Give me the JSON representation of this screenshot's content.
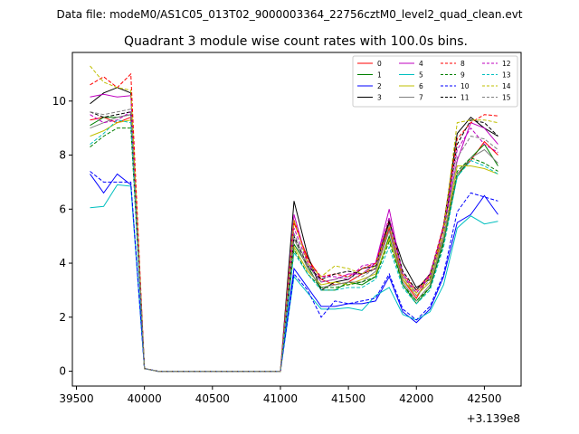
{
  "chart_data": {
    "type": "line",
    "suptitle": "Data file: modeM0/AS1C05_013T02_9000003364_22756cztM0_level2_quad_clean.evt",
    "title": "Quadrant 3 module wise count rates with 100.0s bins.",
    "xlabel": "",
    "ylabel": "",
    "x_offset_label": "+3.139e8",
    "xlim": [
      39470,
      42770
    ],
    "ylim": [
      -0.55,
      11.8
    ],
    "x_ticks": [
      39500,
      40000,
      40500,
      41000,
      41500,
      42000,
      42500
    ],
    "x_tick_labels": [
      "39500",
      "40000",
      "40500",
      "41000",
      "41500",
      "42000",
      "42500"
    ],
    "y_ticks": [
      0,
      2,
      4,
      6,
      8,
      10
    ],
    "y_tick_labels": [
      "0",
      "2",
      "4",
      "6",
      "8",
      "10"
    ],
    "legend_position": "top-right",
    "legend_columns": 4,
    "x": [
      39600,
      39700,
      39800,
      39900,
      40000,
      40100,
      40200,
      40300,
      40400,
      40500,
      40600,
      40700,
      40800,
      40900,
      41000,
      41100,
      41200,
      41300,
      41400,
      41500,
      41600,
      41700,
      41800,
      41900,
      42000,
      42100,
      42200,
      42300,
      42400,
      42500,
      42600
    ],
    "series": [
      {
        "name": "0",
        "color": "#ff0000",
        "dash": "solid",
        "values": [
          9.3,
          9.4,
          9.2,
          9.4,
          0.1,
          0,
          0,
          0,
          0,
          0,
          0,
          0,
          0,
          0,
          0,
          5.5,
          4.2,
          3.4,
          3.2,
          3.3,
          3.6,
          3.8,
          5.3,
          3.4,
          2.7,
          3.6,
          5.0,
          7.3,
          7.8,
          8.5,
          8.0
        ]
      },
      {
        "name": "1",
        "color": "#008000",
        "dash": "solid",
        "values": [
          9.1,
          9.4,
          9.4,
          9.5,
          0.1,
          0,
          0,
          0,
          0,
          0,
          0,
          0,
          0,
          0,
          0,
          4.7,
          3.9,
          3.0,
          3.0,
          3.3,
          3.2,
          3.5,
          5.0,
          3.2,
          2.5,
          3.1,
          4.8,
          7.2,
          7.9,
          8.4,
          7.6
        ]
      },
      {
        "name": "2",
        "color": "#0000ff",
        "dash": "solid",
        "values": [
          7.3,
          6.6,
          7.3,
          6.9,
          0.1,
          0,
          0,
          0,
          0,
          0,
          0,
          0,
          0,
          0,
          0,
          3.8,
          3.1,
          2.4,
          2.4,
          2.5,
          2.5,
          2.6,
          3.5,
          2.2,
          1.8,
          2.3,
          3.5,
          5.5,
          5.8,
          6.5,
          5.8
        ]
      },
      {
        "name": "3",
        "color": "#000000",
        "dash": "solid",
        "values": [
          9.9,
          10.3,
          10.5,
          10.3,
          0.1,
          0,
          0,
          0,
          0,
          0,
          0,
          0,
          0,
          0,
          0,
          6.3,
          4.3,
          3.0,
          3.3,
          3.4,
          3.8,
          3.9,
          5.5,
          4.0,
          3.1,
          3.4,
          5.4,
          8.8,
          9.4,
          9.0,
          8.7
        ]
      },
      {
        "name": "4",
        "color": "#bf00bf",
        "dash": "solid",
        "values": [
          10.15,
          10.25,
          10.15,
          10.2,
          0.1,
          0,
          0,
          0,
          0,
          0,
          0,
          0,
          0,
          0,
          0,
          5.8,
          4.0,
          3.3,
          3.4,
          3.6,
          3.6,
          4.0,
          6.0,
          3.5,
          2.9,
          3.5,
          5.3,
          7.8,
          9.2,
          9.0,
          8.4
        ]
      },
      {
        "name": "5",
        "color": "#00bfbf",
        "dash": "solid",
        "values": [
          6.05,
          6.1,
          6.9,
          6.85,
          0.1,
          0,
          0,
          0,
          0,
          0,
          0,
          0,
          0,
          0,
          0,
          3.5,
          2.9,
          2.3,
          2.3,
          2.35,
          2.25,
          2.8,
          3.1,
          2.1,
          1.9,
          2.2,
          3.2,
          5.3,
          5.75,
          5.45,
          5.55
        ]
      },
      {
        "name": "6",
        "color": "#bfbf00",
        "dash": "solid",
        "values": [
          8.7,
          8.9,
          9.2,
          9.3,
          0.1,
          0,
          0,
          0,
          0,
          0,
          0,
          0,
          0,
          0,
          0,
          4.6,
          3.7,
          3.2,
          3.3,
          3.2,
          3.4,
          3.6,
          4.9,
          3.4,
          2.8,
          3.3,
          5.0,
          7.6,
          7.6,
          7.5,
          7.3
        ]
      },
      {
        "name": "7",
        "color": "#808080",
        "dash": "solid",
        "values": [
          9.0,
          9.2,
          9.4,
          9.5,
          0.1,
          0,
          0,
          0,
          0,
          0,
          0,
          0,
          0,
          0,
          0,
          4.9,
          3.8,
          3.1,
          3.2,
          3.3,
          3.3,
          3.7,
          5.2,
          3.3,
          2.6,
          3.2,
          4.9,
          7.3,
          7.9,
          8.2,
          7.7
        ]
      },
      {
        "name": "8",
        "color": "#ff0000",
        "dash": "dashed",
        "values": [
          10.6,
          10.9,
          10.5,
          11.0,
          0.1,
          0,
          0,
          0,
          0,
          0,
          0,
          0,
          0,
          0,
          0,
          5.6,
          4.1,
          3.5,
          3.6,
          3.5,
          3.8,
          4.0,
          5.6,
          3.6,
          3.0,
          3.6,
          5.4,
          8.6,
          9.2,
          9.5,
          9.45
        ]
      },
      {
        "name": "9",
        "color": "#008000",
        "dash": "dashed",
        "values": [
          8.3,
          8.7,
          9.0,
          9.0,
          0.1,
          0,
          0,
          0,
          0,
          0,
          0,
          0,
          0,
          0,
          0,
          4.5,
          3.6,
          3.1,
          3.1,
          3.2,
          3.3,
          3.5,
          4.8,
          3.2,
          2.6,
          3.1,
          4.7,
          7.4,
          7.9,
          7.7,
          7.4
        ]
      },
      {
        "name": "10",
        "color": "#0000ff",
        "dash": "dashed",
        "values": [
          7.4,
          7.0,
          7.0,
          7.0,
          0.1,
          0,
          0,
          0,
          0,
          0,
          0,
          0,
          0,
          0,
          0,
          3.6,
          3.0,
          2.0,
          2.6,
          2.5,
          2.6,
          2.7,
          3.6,
          2.3,
          1.9,
          2.4,
          3.6,
          5.9,
          6.6,
          6.45,
          6.3
        ]
      },
      {
        "name": "11",
        "color": "#000000",
        "dash": "dashed",
        "values": [
          9.6,
          9.4,
          9.5,
          9.6,
          0.1,
          0,
          0,
          0,
          0,
          0,
          0,
          0,
          0,
          0,
          0,
          5.0,
          3.9,
          3.4,
          3.6,
          3.7,
          3.6,
          3.8,
          5.6,
          3.7,
          3.0,
          3.6,
          5.2,
          8.4,
          9.3,
          9.2,
          8.7
        ]
      },
      {
        "name": "12",
        "color": "#bf00bf",
        "dash": "dashed",
        "values": [
          9.5,
          9.2,
          9.3,
          9.6,
          0.1,
          0,
          0,
          0,
          0,
          0,
          0,
          0,
          0,
          0,
          0,
          5.3,
          4.0,
          3.5,
          3.5,
          3.4,
          3.9,
          4.0,
          5.7,
          3.6,
          2.9,
          3.6,
          5.3,
          8.2,
          9.0,
          8.4,
          8.1
        ]
      },
      {
        "name": "13",
        "color": "#00bfbf",
        "dash": "dashed",
        "values": [
          8.4,
          8.8,
          9.3,
          9.2,
          0.1,
          0,
          0,
          0,
          0,
          0,
          0,
          0,
          0,
          0,
          0,
          4.4,
          3.6,
          3.0,
          3.0,
          3.1,
          3.1,
          3.4,
          4.6,
          3.1,
          2.5,
          3.0,
          4.6,
          7.2,
          7.8,
          7.6,
          7.3
        ]
      },
      {
        "name": "14",
        "color": "#bfbf00",
        "dash": "dashed",
        "values": [
          11.3,
          10.7,
          10.5,
          10.4,
          0.1,
          0,
          0,
          0,
          0,
          0,
          0,
          0,
          0,
          0,
          0,
          5.6,
          4.0,
          3.5,
          3.9,
          3.8,
          3.6,
          3.9,
          5.4,
          3.5,
          2.9,
          3.5,
          5.2,
          9.2,
          9.3,
          9.3,
          9.2
        ]
      },
      {
        "name": "15",
        "color": "#808080",
        "dash": "dashed",
        "values": [
          9.6,
          9.5,
          9.6,
          9.7,
          0.1,
          0,
          0,
          0,
          0,
          0,
          0,
          0,
          0,
          0,
          0,
          5.1,
          3.9,
          3.3,
          3.4,
          3.5,
          3.5,
          3.8,
          5.4,
          3.5,
          2.8,
          3.4,
          5.0,
          7.9,
          8.7,
          8.6,
          8.2
        ]
      }
    ]
  }
}
